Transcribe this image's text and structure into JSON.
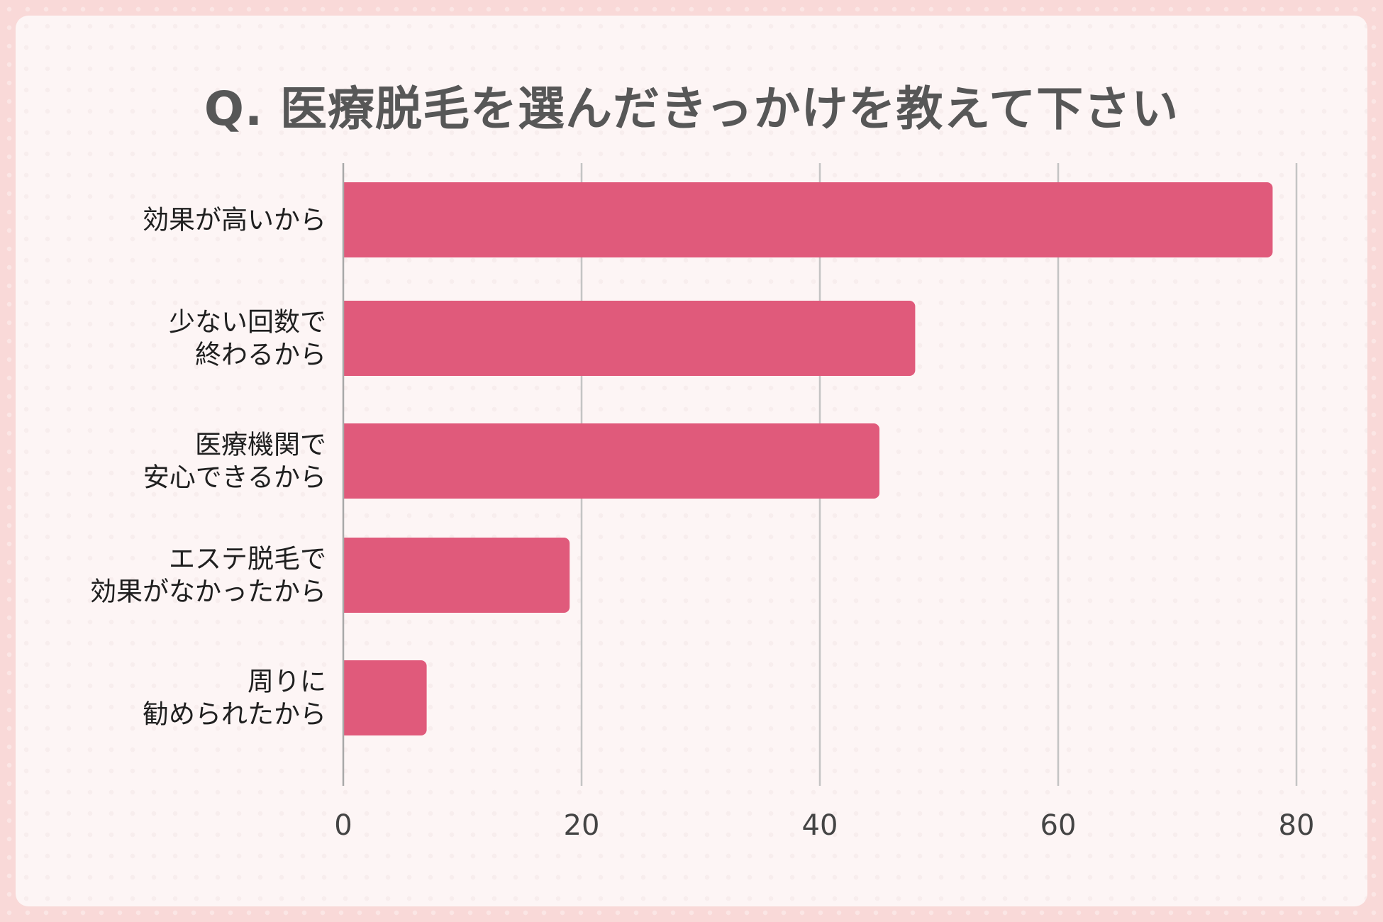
{
  "chart_data": {
    "type": "bar",
    "orientation": "horizontal",
    "title": "Q. 医療脱毛を選んだきっかけを教えて下さい",
    "categories": [
      [
        "効果が高いから"
      ],
      [
        "少ない回数で",
        "終わるから"
      ],
      [
        "医療機関で",
        "安心できるから"
      ],
      [
        "エステ脱毛で",
        "効果がなかったから"
      ],
      [
        "周りに",
        "勧められたから"
      ]
    ],
    "values": [
      78,
      48,
      45,
      19,
      7
    ],
    "xlim": [
      0,
      80
    ],
    "xticks": [
      "0",
      "20",
      "40",
      "60",
      "80"
    ],
    "tick_values": [
      0,
      20,
      40,
      60,
      80
    ],
    "grid": true,
    "bar_color": "#e05a7b",
    "grid_color": "#c4c4c4",
    "xlabel": "",
    "ylabel": ""
  }
}
